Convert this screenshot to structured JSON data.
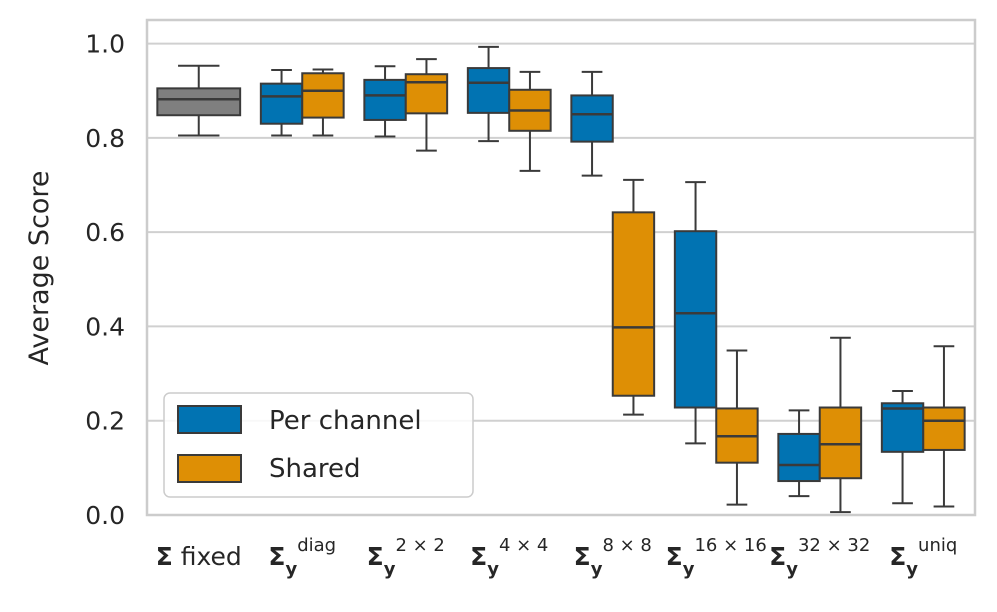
{
  "chart_data": {
    "type": "boxplot",
    "title": "",
    "xlabel": "",
    "ylabel": "Average Score",
    "ylim": [
      0.0,
      1.05
    ],
    "yticks": [
      "0.0",
      "0.2",
      "0.4",
      "0.6",
      "0.8",
      "1.0"
    ],
    "grid": "horizontal",
    "legend": {
      "placement": "lower-left",
      "entries": [
        "Per channel",
        "Shared"
      ]
    },
    "colors": {
      "Per channel": "#0173b2",
      "Shared": "#de8f05",
      "fixed": "#7f7f7f",
      "frame": "#cccccc",
      "grid": "#d0d0d0",
      "line": "#3a3a3a"
    },
    "categories": [
      {
        "id": "fixed",
        "symbol": "Σ",
        "text": " fixed",
        "sub": "",
        "sup": ""
      },
      {
        "id": "diag",
        "symbol": "Σ",
        "text": "",
        "sub": "y",
        "sup": "diag"
      },
      {
        "id": "2x2",
        "symbol": "Σ",
        "text": "",
        "sub": "y",
        "sup": "2 × 2"
      },
      {
        "id": "4x4",
        "symbol": "Σ",
        "text": "",
        "sub": "y",
        "sup": "4 × 4"
      },
      {
        "id": "8x8",
        "symbol": "Σ",
        "text": "",
        "sub": "y",
        "sup": "8 × 8"
      },
      {
        "id": "16x16",
        "symbol": "Σ",
        "text": "",
        "sub": "y",
        "sup": "16 × 16"
      },
      {
        "id": "32x32",
        "symbol": "Σ",
        "text": "",
        "sub": "y",
        "sup": "32 × 32"
      },
      {
        "id": "uniq",
        "symbol": "Σ",
        "text": "",
        "sub": "y",
        "sup": "uniq"
      }
    ],
    "boxes": [
      {
        "category": "fixed",
        "series": "fixed",
        "whislo": 0.805,
        "q1": 0.848,
        "med": 0.882,
        "q3": 0.905,
        "whishi": 0.953
      },
      {
        "category": "diag",
        "series": "Per channel",
        "whislo": 0.805,
        "q1": 0.83,
        "med": 0.888,
        "q3": 0.915,
        "whishi": 0.944
      },
      {
        "category": "diag",
        "series": "Shared",
        "whislo": 0.805,
        "q1": 0.843,
        "med": 0.9,
        "q3": 0.937,
        "whishi": 0.945
      },
      {
        "category": "2x2",
        "series": "Per channel",
        "whislo": 0.803,
        "q1": 0.838,
        "med": 0.89,
        "q3": 0.923,
        "whishi": 0.952
      },
      {
        "category": "2x2",
        "series": "Shared",
        "whislo": 0.773,
        "q1": 0.852,
        "med": 0.918,
        "q3": 0.935,
        "whishi": 0.967
      },
      {
        "category": "4x4",
        "series": "Per channel",
        "whislo": 0.793,
        "q1": 0.853,
        "med": 0.917,
        "q3": 0.948,
        "whishi": 0.993
      },
      {
        "category": "4x4",
        "series": "Shared",
        "whislo": 0.73,
        "q1": 0.815,
        "med": 0.858,
        "q3": 0.902,
        "whishi": 0.94
      },
      {
        "category": "8x8",
        "series": "Per channel",
        "whislo": 0.72,
        "q1": 0.792,
        "med": 0.85,
        "q3": 0.89,
        "whishi": 0.94
      },
      {
        "category": "8x8",
        "series": "Shared",
        "whislo": 0.213,
        "q1": 0.253,
        "med": 0.398,
        "q3": 0.642,
        "whishi": 0.711
      },
      {
        "category": "16x16",
        "series": "Per channel",
        "whislo": 0.152,
        "q1": 0.228,
        "med": 0.428,
        "q3": 0.602,
        "whishi": 0.706
      },
      {
        "category": "16x16",
        "series": "Shared",
        "whislo": 0.022,
        "q1": 0.111,
        "med": 0.167,
        "q3": 0.226,
        "whishi": 0.349
      },
      {
        "category": "32x32",
        "series": "Per channel",
        "whislo": 0.04,
        "q1": 0.072,
        "med": 0.106,
        "q3": 0.172,
        "whishi": 0.222
      },
      {
        "category": "32x32",
        "series": "Shared",
        "whislo": 0.006,
        "q1": 0.078,
        "med": 0.15,
        "q3": 0.228,
        "whishi": 0.376
      },
      {
        "category": "uniq",
        "series": "Per channel",
        "whislo": 0.025,
        "q1": 0.134,
        "med": 0.226,
        "q3": 0.237,
        "whishi": 0.263
      },
      {
        "category": "uniq",
        "series": "Shared",
        "whislo": 0.018,
        "q1": 0.138,
        "med": 0.2,
        "q3": 0.228,
        "whishi": 0.358
      }
    ]
  }
}
